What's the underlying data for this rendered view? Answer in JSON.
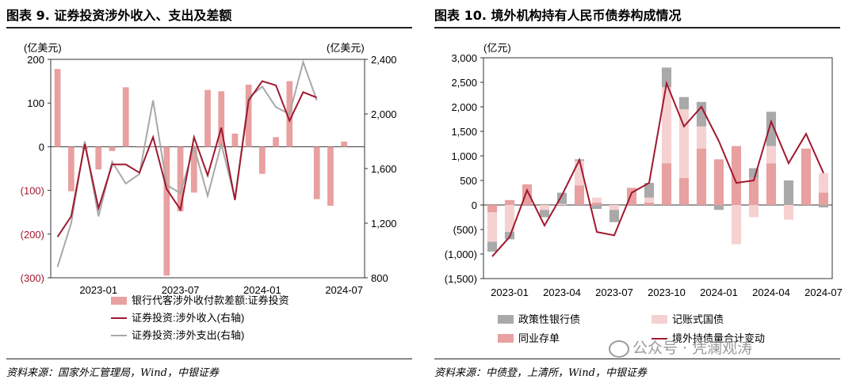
{
  "left": {
    "title": "图表 9. 证券投资涉外收入、支出及差额",
    "source": "资料来源：国家外汇管理局，Wind，中银证券",
    "chart_data": {
      "type": "bar",
      "left_unit": "(亿美元)",
      "right_unit": "(亿美元)",
      "left_ticks": [
        "200",
        "100",
        "0",
        "(100)",
        "(200)",
        "(300)"
      ],
      "right_ticks": [
        "2,400",
        "2,000",
        "1,600",
        "1,200",
        "800"
      ],
      "ylim_left": [
        -300,
        200
      ],
      "ylim_right": [
        800,
        2400
      ],
      "x_tick_labels": [
        "2023-01",
        "2023-07",
        "2024-01",
        "2024-07"
      ],
      "categories": [
        "2022-10",
        "2022-11",
        "2022-12",
        "2023-01",
        "2023-02",
        "2023-03",
        "2023-04",
        "2023-05",
        "2023-06",
        "2023-07",
        "2023-08",
        "2023-09",
        "2023-10",
        "2023-11",
        "2023-12",
        "2024-01",
        "2024-02",
        "2024-03",
        "2024-04",
        "2024-05",
        "2024-06",
        "2024-07",
        "2024-08"
      ],
      "series": [
        {
          "name": "银行代客涉外收付款差额:证券投资",
          "type": "bar",
          "axis": "left",
          "color": "#e8a0a0",
          "values": [
            178,
            -102,
            -5,
            -52,
            -10,
            136,
            -2,
            1,
            -295,
            -148,
            -105,
            130,
            127,
            30,
            142,
            -62,
            22,
            150,
            0,
            -120,
            -135,
            12,
            null
          ]
        },
        {
          "name": "证券投资:涉外收入(右轴)",
          "type": "line",
          "axis": "right",
          "color": "#a0192f",
          "values": [
            1100,
            1250,
            1780,
            1310,
            1630,
            1630,
            1570,
            1830,
            1450,
            1300,
            1830,
            1550,
            1900,
            1370,
            2100,
            2240,
            2210,
            1950,
            2160,
            2120,
            null,
            null,
            null
          ]
        },
        {
          "name": "证券投资:涉外支出(右轴)",
          "type": "line",
          "axis": "right",
          "color": "#a8a8a8",
          "values": [
            880,
            1200,
            1800,
            1250,
            1650,
            1490,
            1560,
            2100,
            1480,
            1420,
            1760,
            1400,
            1780,
            1380,
            2120,
            2200,
            2050,
            2000,
            2380,
            2100,
            null,
            null,
            null
          ]
        }
      ]
    }
  },
  "right": {
    "title": "图表 10. 境外机构持有人民币债券构成情况",
    "source": "资料来源：中债登，上清所，Wind，中银证券",
    "watermark": "公众号 · 凭澜观涛",
    "chart_data": {
      "type": "bar",
      "y_unit": "(亿元)",
      "y_ticks": [
        "3,000",
        "2,500",
        "2,000",
        "1,500",
        "1,000",
        "500",
        "0",
        "(500)",
        "(1,000)",
        "(1,500)"
      ],
      "ylim": [
        -1500,
        3000
      ],
      "x_tick_labels": [
        "2023-01",
        "2023-04",
        "2023-07",
        "2023-10",
        "2024-01",
        "2024-04",
        "2024-07"
      ],
      "categories": [
        "2022-12",
        "2023-01",
        "2023-02",
        "2023-03",
        "2023-04",
        "2023-05",
        "2023-06",
        "2023-07",
        "2023-08",
        "2023-09",
        "2023-10",
        "2023-11",
        "2023-12",
        "2024-01",
        "2024-02",
        "2024-03",
        "2024-04",
        "2024-05",
        "2024-06",
        "2024-07"
      ],
      "series": [
        {
          "name": "政策性银行债",
          "type": "bar",
          "stack": true,
          "color": "#a9a9a9",
          "values": [
            -200,
            -150,
            0,
            -150,
            230,
            30,
            -80,
            -250,
            0,
            300,
            400,
            250,
            500,
            -100,
            0,
            200,
            700,
            500,
            0,
            -50
          ]
        },
        {
          "name": "记账式国债",
          "type": "bar",
          "stack": true,
          "color": "#f6d1d1",
          "values": [
            -600,
            -550,
            0,
            -100,
            20,
            500,
            100,
            -100,
            0,
            100,
            1550,
            1400,
            450,
            0,
            -800,
            -250,
            350,
            -300,
            0,
            400
          ]
        },
        {
          "name": "同业存单",
          "type": "bar",
          "stack": true,
          "color": "#e8a0a0",
          "values": [
            -150,
            100,
            420,
            0,
            0,
            400,
            50,
            0,
            350,
            50,
            850,
            550,
            1150,
            930,
            1200,
            550,
            850,
            0,
            1150,
            250
          ]
        },
        {
          "name": "境外持债量合计变动",
          "type": "line",
          "color": "#a0192f",
          "values": [
            -1050,
            -650,
            300,
            -420,
            200,
            920,
            -550,
            -620,
            250,
            450,
            2480,
            1600,
            2000,
            1300,
            450,
            500,
            1700,
            850,
            1450,
            650
          ]
        }
      ]
    }
  }
}
